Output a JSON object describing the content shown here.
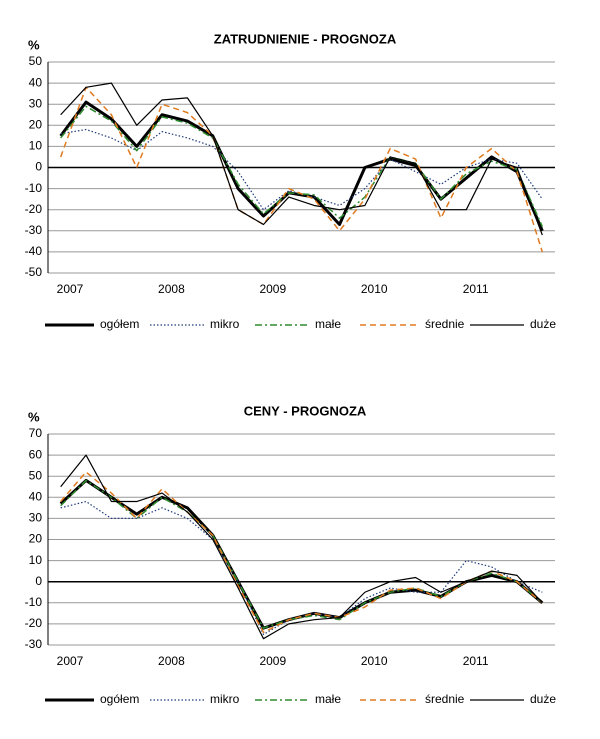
{
  "chart_data": [
    {
      "type": "line",
      "title": "ZATRUDNIENIE  - PROGNOZA",
      "y_label": "%",
      "categories": [
        "2007",
        null,
        null,
        null,
        "2008",
        null,
        null,
        null,
        "2009",
        null,
        null,
        null,
        "2010",
        null,
        null,
        null,
        "2011",
        null,
        null,
        null
      ],
      "ylim": [
        -50,
        50
      ],
      "yticks": [
        -50,
        -40,
        -30,
        -20,
        -10,
        0,
        10,
        20,
        30,
        40,
        50
      ],
      "grid": true,
      "series": [
        {
          "name": "ogółem",
          "color": "#000000",
          "style": "solid",
          "width": 3,
          "values": [
            15,
            31,
            23,
            10,
            25,
            22,
            15,
            -10,
            -23,
            -12,
            -14,
            -27,
            0,
            4,
            1,
            -15,
            -5,
            5,
            -2,
            -30
          ]
        },
        {
          "name": "mikro",
          "color": "#1f3a7a",
          "style": "dotted",
          "width": 1.2,
          "values": [
            16,
            18,
            14,
            8,
            17,
            14,
            10,
            -2,
            -20,
            -11,
            -14,
            -18,
            -10,
            4,
            -2,
            -8,
            0,
            4,
            2,
            -15
          ]
        },
        {
          "name": "małe",
          "color": "#2e8b2e",
          "style": "dashdot",
          "width": 1.5,
          "values": [
            14,
            29,
            22,
            8,
            24,
            21,
            14,
            -8,
            -22,
            -12,
            -13,
            -24,
            -14,
            5,
            2,
            -15,
            -3,
            3,
            -1,
            -28
          ]
        },
        {
          "name": "średnie",
          "color": "#e07b20",
          "style": "dashed",
          "width": 1.5,
          "values": [
            5,
            38,
            25,
            0,
            30,
            26,
            15,
            -20,
            -27,
            -10,
            -15,
            -30,
            -15,
            9,
            4,
            -24,
            0,
            9,
            -2,
            -40
          ]
        },
        {
          "name": "duże",
          "color": "#000000",
          "style": "solid",
          "width": 1.2,
          "values": [
            25,
            38,
            40,
            20,
            32,
            33,
            15,
            -20,
            -27,
            -14,
            -18,
            -20,
            -18,
            5,
            2,
            -20,
            -20,
            4,
            0,
            -32
          ]
        }
      ]
    },
    {
      "type": "line",
      "title": "CENY - PROGNOZA",
      "y_label": "%",
      "categories": [
        "2007",
        null,
        null,
        null,
        "2008",
        null,
        null,
        null,
        "2009",
        null,
        null,
        null,
        "2010",
        null,
        null,
        null,
        "2011",
        null,
        null,
        null
      ],
      "ylim": [
        -30,
        70
      ],
      "yticks": [
        -30,
        -20,
        -10,
        0,
        10,
        20,
        30,
        40,
        50,
        60,
        70
      ],
      "grid": true,
      "series": [
        {
          "name": "ogółem",
          "color": "#000000",
          "style": "solid",
          "width": 3,
          "values": [
            37,
            48,
            40,
            32,
            40,
            35,
            22,
            0,
            -22,
            -18,
            -15,
            -17,
            -10,
            -5,
            -4,
            -7,
            0,
            3,
            0,
            -10
          ]
        },
        {
          "name": "mikro",
          "color": "#1f3a7a",
          "style": "dotted",
          "width": 1.2,
          "values": [
            35,
            38,
            30,
            30,
            35,
            30,
            20,
            0,
            -25,
            -18,
            -15,
            -17,
            -8,
            -3,
            -5,
            -5,
            10,
            7,
            0,
            -5
          ]
        },
        {
          "name": "małe",
          "color": "#2e8b2e",
          "style": "dashdot",
          "width": 1.5,
          "values": [
            36,
            48,
            40,
            30,
            40,
            33,
            22,
            0,
            -22,
            -18,
            -16,
            -18,
            -10,
            -5,
            -3,
            -7,
            0,
            4,
            0,
            -10
          ]
        },
        {
          "name": "średnie",
          "color": "#e07b20",
          "style": "dashed",
          "width": 1.5,
          "values": [
            38,
            52,
            42,
            30,
            44,
            33,
            22,
            -2,
            -24,
            -18,
            -15,
            -17,
            -12,
            -4,
            -3,
            -8,
            0,
            5,
            0,
            -10
          ]
        },
        {
          "name": "duże",
          "color": "#000000",
          "style": "solid",
          "width": 1.2,
          "values": [
            45,
            60,
            38,
            38,
            42,
            33,
            20,
            -3,
            -27,
            -20,
            -18,
            -17,
            -5,
            0,
            2,
            -5,
            0,
            5,
            3,
            -10
          ]
        }
      ]
    }
  ]
}
